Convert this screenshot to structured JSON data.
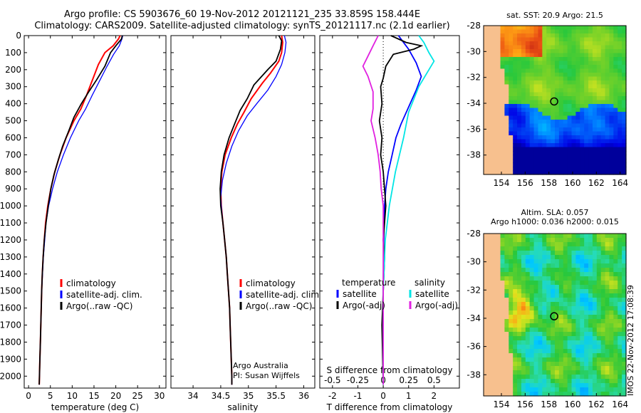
{
  "header": {
    "line1": "Argo profile: CS 5903676_60 19-Nov-2012 20121121_235 33.859S 158.444E",
    "line2": "Climatology: CARS2009. Satellite-adjusted climatology: synTS_20121117.nc (2.1d earlier)"
  },
  "colors": {
    "climatology": "#ff0000",
    "satellite": "#0000ff",
    "argo": "#000000",
    "sal_satellite": "#00e5e5",
    "sal_argo": "#e020e0"
  },
  "chart_data": [
    {
      "type": "line",
      "name": "temperature",
      "xlabel": "temperature (deg C)",
      "ylabel": "",
      "xlim": [
        -1,
        31.5
      ],
      "ylim": [
        2070,
        0
      ],
      "x_ticks": [
        "0",
        "5",
        "10",
        "15",
        "20",
        "25",
        "30"
      ],
      "y_ticks": [
        "0",
        "100",
        "200",
        "300",
        "400",
        "500",
        "600",
        "700",
        "800",
        "900",
        "1000",
        "1100",
        "1200",
        "1300",
        "1400",
        "1500",
        "1600",
        "1700",
        "1800",
        "1900",
        "2000"
      ],
      "legend": [
        "climatology",
        "satellite-adj. clim.",
        "Argo(..raw -QC)"
      ],
      "series": [
        {
          "name": "climatology",
          "color": "#ff0000",
          "points": [
            [
              21,
              0
            ],
            [
              20.6,
              20
            ],
            [
              19.4,
              60
            ],
            [
              17.5,
              100
            ],
            [
              16,
              170
            ],
            [
              14.5,
              270
            ],
            [
              13.3,
              350
            ],
            [
              12,
              430
            ],
            [
              10.4,
              500
            ],
            [
              8.6,
              600
            ],
            [
              7.2,
              700
            ],
            [
              6,
              800
            ],
            [
              5.1,
              900
            ],
            [
              4.4,
              1000
            ],
            [
              3.9,
              1100
            ],
            [
              3.6,
              1200
            ],
            [
              3.35,
              1300
            ],
            [
              3.15,
              1400
            ],
            [
              3,
              1500
            ],
            [
              2.9,
              1600
            ],
            [
              2.8,
              1700
            ],
            [
              2.7,
              1800
            ],
            [
              2.6,
              1900
            ],
            [
              2.5,
              2000
            ],
            [
              2.45,
              2050
            ]
          ]
        },
        {
          "name": "satellite-adj. clim.",
          "color": "#0000ff",
          "points": [
            [
              21.6,
              0
            ],
            [
              21.4,
              20
            ],
            [
              20.8,
              60
            ],
            [
              19.5,
              110
            ],
            [
              18,
              180
            ],
            [
              16.2,
              270
            ],
            [
              14.6,
              350
            ],
            [
              13.1,
              430
            ],
            [
              11.5,
              500
            ],
            [
              9.6,
              600
            ],
            [
              8,
              700
            ],
            [
              6.6,
              800
            ],
            [
              5.5,
              900
            ],
            [
              4.6,
              1000
            ],
            [
              4,
              1100
            ],
            [
              3.7,
              1200
            ],
            [
              3.4,
              1300
            ],
            [
              3.2,
              1400
            ],
            [
              3,
              1500
            ],
            [
              2.9,
              1600
            ],
            [
              2.8,
              1700
            ],
            [
              2.7,
              1800
            ],
            [
              2.6,
              1900
            ],
            [
              2.5,
              2000
            ],
            [
              2.45,
              2050
            ]
          ]
        },
        {
          "name": "Argo(..raw -QC)",
          "color": "#000000",
          "points": [
            [
              21.5,
              0
            ],
            [
              21.3,
              20
            ],
            [
              20,
              60
            ],
            [
              18.8,
              100
            ],
            [
              17.5,
              180
            ],
            [
              15.6,
              260
            ],
            [
              13.8,
              330
            ],
            [
              12.1,
              400
            ],
            [
              10.4,
              480
            ],
            [
              9.2,
              560
            ],
            [
              7.8,
              650
            ],
            [
              6.8,
              730
            ],
            [
              5.8,
              820
            ],
            [
              5.1,
              900
            ],
            [
              4.5,
              1000
            ],
            [
              4,
              1100
            ],
            [
              3.6,
              1200
            ],
            [
              3.35,
              1300
            ],
            [
              3.15,
              1400
            ],
            [
              3,
              1500
            ],
            [
              2.9,
              1600
            ],
            [
              2.8,
              1700
            ],
            [
              2.7,
              1800
            ],
            [
              2.6,
              1900
            ],
            [
              2.5,
              2000
            ],
            [
              2.45,
              2050
            ]
          ]
        }
      ]
    },
    {
      "type": "line",
      "name": "salinity",
      "xlabel": "salinity",
      "ylabel": "",
      "xlim": [
        33.6,
        36.2
      ],
      "ylim": [
        2070,
        0
      ],
      "x_ticks": [
        "34",
        "34.5",
        "35",
        "35.5",
        "36"
      ],
      "legend": [
        "climatology",
        "satellite-adj. clim.",
        "Argo(..raw -QC)"
      ],
      "annotation": [
        "Argo Australia",
        "PI: Susan Wijffels"
      ],
      "series": [
        {
          "name": "climatology",
          "color": "#ff0000",
          "points": [
            [
              35.6,
              0
            ],
            [
              35.62,
              40
            ],
            [
              35.6,
              100
            ],
            [
              35.55,
              150
            ],
            [
              35.4,
              220
            ],
            [
              35.25,
              280
            ],
            [
              35.05,
              370
            ],
            [
              34.92,
              450
            ],
            [
              34.8,
              520
            ],
            [
              34.69,
              600
            ],
            [
              34.58,
              700
            ],
            [
              34.52,
              800
            ],
            [
              34.5,
              900
            ],
            [
              34.51,
              1000
            ],
            [
              34.54,
              1100
            ],
            [
              34.57,
              1200
            ],
            [
              34.6,
              1300
            ],
            [
              34.62,
              1400
            ],
            [
              34.64,
              1500
            ],
            [
              34.66,
              1600
            ],
            [
              34.67,
              1700
            ],
            [
              34.68,
              1800
            ],
            [
              34.69,
              1900
            ],
            [
              34.7,
              2000
            ],
            [
              34.7,
              2050
            ]
          ]
        },
        {
          "name": "satellite-adj. clim.",
          "color": "#0000ff",
          "points": [
            [
              35.65,
              0
            ],
            [
              35.68,
              40
            ],
            [
              35.66,
              100
            ],
            [
              35.6,
              170
            ],
            [
              35.5,
              240
            ],
            [
              35.35,
              320
            ],
            [
              35.15,
              400
            ],
            [
              34.98,
              470
            ],
            [
              34.82,
              560
            ],
            [
              34.7,
              650
            ],
            [
              34.6,
              750
            ],
            [
              34.53,
              850
            ],
            [
              34.5,
              950
            ],
            [
              34.51,
              1000
            ],
            [
              34.54,
              1100
            ],
            [
              34.57,
              1200
            ],
            [
              34.6,
              1300
            ],
            [
              34.62,
              1400
            ],
            [
              34.64,
              1500
            ],
            [
              34.66,
              1600
            ],
            [
              34.67,
              1700
            ],
            [
              34.68,
              1800
            ],
            [
              34.69,
              1900
            ],
            [
              34.7,
              2000
            ],
            [
              34.7,
              2050
            ]
          ]
        },
        {
          "name": "Argo(..raw -QC)",
          "color": "#000000",
          "points": [
            [
              35.55,
              0
            ],
            [
              35.6,
              30
            ],
            [
              35.58,
              80
            ],
            [
              35.5,
              150
            ],
            [
              35.35,
              200
            ],
            [
              35.1,
              290
            ],
            [
              34.98,
              370
            ],
            [
              34.85,
              440
            ],
            [
              34.75,
              520
            ],
            [
              34.65,
              600
            ],
            [
              34.56,
              700
            ],
            [
              34.51,
              800
            ],
            [
              34.49,
              900
            ],
            [
              34.5,
              1000
            ],
            [
              34.54,
              1100
            ],
            [
              34.57,
              1200
            ],
            [
              34.6,
              1300
            ],
            [
              34.62,
              1400
            ],
            [
              34.64,
              1500
            ],
            [
              34.66,
              1600
            ],
            [
              34.67,
              1700
            ],
            [
              34.68,
              1800
            ],
            [
              34.69,
              1900
            ],
            [
              34.7,
              2000
            ],
            [
              34.7,
              2050
            ]
          ]
        }
      ]
    },
    {
      "type": "line",
      "name": "difference",
      "xlabel": "T difference from climatology",
      "xlabel_top": "S difference from climatology",
      "xlim": [
        -2.5,
        3
      ],
      "ylim": [
        2070,
        0
      ],
      "x_ticks": [
        "-2",
        "-1",
        "0",
        "1",
        "2"
      ],
      "x_ticks_top": [
        "-0.5",
        "-0.25",
        "0",
        "0.25",
        "0.5"
      ],
      "legend_temperature": {
        "title": "temperature",
        "items": [
          "satellite",
          "Argo(-adj)"
        ]
      },
      "legend_salinity": {
        "title": "salinity",
        "items": [
          "satellite",
          "Argo(-adj)"
        ]
      },
      "series": [
        {
          "name": "temperature satellite",
          "color": "#0000ff",
          "points": [
            [
              0.6,
              0
            ],
            [
              0.7,
              20
            ],
            [
              1,
              80
            ],
            [
              1.3,
              160
            ],
            [
              1.5,
              240
            ],
            [
              1.3,
              320
            ],
            [
              1,
              420
            ],
            [
              0.7,
              520
            ],
            [
              0.5,
              600
            ],
            [
              0.35,
              700
            ],
            [
              0.2,
              800
            ],
            [
              0.1,
              900
            ],
            [
              0.05,
              1000
            ],
            [
              0.02,
              1200
            ],
            [
              0,
              1500
            ],
            [
              0,
              2050
            ]
          ]
        },
        {
          "name": "temperature Argo(-adj)",
          "color": "#000000",
          "points": [
            [
              0.3,
              0
            ],
            [
              0.9,
              40
            ],
            [
              1.5,
              60
            ],
            [
              1.2,
              80
            ],
            [
              0.4,
              110
            ],
            [
              0.1,
              180
            ],
            [
              0,
              250
            ],
            [
              -0.1,
              300
            ],
            [
              -0.05,
              400
            ],
            [
              -0.15,
              500
            ],
            [
              -0.05,
              600
            ],
            [
              -0.1,
              700
            ],
            [
              0,
              800
            ],
            [
              0.05,
              900
            ],
            [
              0.1,
              1000
            ],
            [
              0.05,
              1100
            ],
            [
              0,
              1200
            ],
            [
              0.05,
              1300
            ],
            [
              0,
              1500
            ],
            [
              -0.05,
              1700
            ],
            [
              0,
              2050
            ]
          ]
        },
        {
          "name": "salinity satellite",
          "color": "#00e5e5",
          "points": [
            [
              0.35,
              0
            ],
            [
              0.4,
              40
            ],
            [
              0.45,
              100
            ],
            [
              0.5,
              150
            ],
            [
              0.35,
              300
            ],
            [
              0.25,
              450
            ],
            [
              0.2,
              600
            ],
            [
              0.12,
              800
            ],
            [
              0.06,
              1000
            ],
            [
              0.02,
              1200
            ],
            [
              0,
              1500
            ],
            [
              0,
              2050
            ]
          ]
        },
        {
          "name": "salinity Argo(-adj)",
          "color": "#e020e0",
          "points": [
            [
              -0.05,
              0
            ],
            [
              -0.1,
              60
            ],
            [
              -0.15,
              120
            ],
            [
              -0.2,
              180
            ],
            [
              -0.15,
              240
            ],
            [
              -0.1,
              330
            ],
            [
              -0.1,
              430
            ],
            [
              -0.12,
              500
            ],
            [
              -0.08,
              600
            ],
            [
              -0.05,
              700
            ],
            [
              -0.03,
              800
            ],
            [
              -0.02,
              900
            ],
            [
              0,
              1000
            ],
            [
              0,
              2050
            ]
          ]
        }
      ]
    },
    {
      "type": "heatmap",
      "name": "sst-map",
      "title": "sat. SST: 20.9 Argo: 21.5",
      "x_ticks": [
        "154",
        "156",
        "158",
        "160",
        "162",
        "164"
      ],
      "y_ticks": [
        "-28",
        "-30",
        "-32",
        "-34",
        "-36",
        "-38"
      ],
      "xlim": [
        152.5,
        164.5
      ],
      "ylim": [
        -39.5,
        -28
      ],
      "marker": {
        "lon": 158.444,
        "lat": -33.859
      }
    },
    {
      "type": "heatmap",
      "name": "sla-map",
      "title_line1": "Altim. SLA: 0.057",
      "title_line2": "Argo h1000: 0.036 h2000: 0.015",
      "x_ticks": [
        "154",
        "156",
        "158",
        "160",
        "162",
        "164"
      ],
      "y_ticks": [
        "-28",
        "-30",
        "-32",
        "-34",
        "-36",
        "-38"
      ],
      "xlim": [
        152.5,
        164.5
      ],
      "ylim": [
        -39.5,
        -28
      ],
      "marker": {
        "lon": 158.444,
        "lat": -33.859
      }
    }
  ],
  "footer_stamp": "IMOS 22-Nov-2012 17:08:39"
}
